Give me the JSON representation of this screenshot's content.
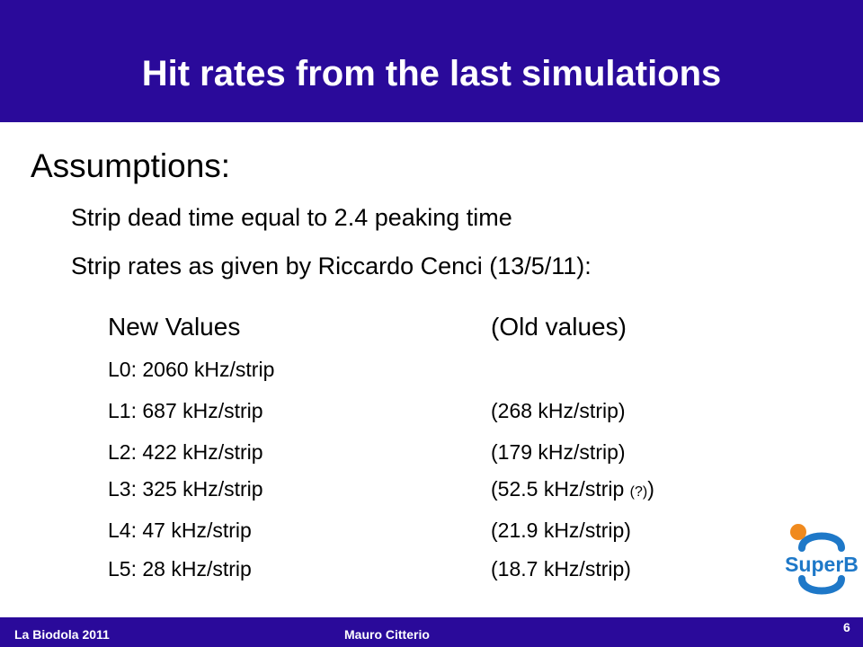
{
  "slide": {
    "title": "Hit rates from the last simulations",
    "heading": "Assumptions:",
    "bullets": [
      "Strip dead time equal to 2.4 peaking time",
      "Strip rates as given by Riccardo Cenci (13/5/11):"
    ],
    "columns": {
      "new_header": "New Values",
      "old_header": "(Old values)"
    },
    "rows": [
      {
        "new": "L0: 2060 kHz/strip",
        "old": "",
        "old_note": "",
        "old_close": ""
      },
      {
        "new": "L1:  687 kHz/strip",
        "old": "(268 kHz/strip)",
        "old_note": "",
        "old_close": ""
      },
      {
        "new": "L2:  422 kHz/strip",
        "old": "(179 kHz/strip)",
        "old_note": "",
        "old_close": ""
      },
      {
        "new": "L3:  325 kHz/strip",
        "old": "(52.5 kHz/strip ",
        "old_note": "(?)",
        "old_close": ")"
      },
      {
        "new": "L4:  47 kHz/strip",
        "old": "(21.9 kHz/strip)",
        "old_note": "",
        "old_close": ""
      },
      {
        "new": "L5:  28 kHz/strip",
        "old": "(18.7 kHz/strip)",
        "old_note": "",
        "old_close": ""
      }
    ]
  },
  "logo": {
    "text": "SuperB",
    "icon": "superb-logo-icon"
  },
  "footer": {
    "left": "La Biodola 2011",
    "center": "Mauro Citterio",
    "page": "6"
  },
  "colors": {
    "bar": "#2a0a9a",
    "logo_blue": "#1e78c8",
    "logo_orange": "#f08a1e"
  }
}
